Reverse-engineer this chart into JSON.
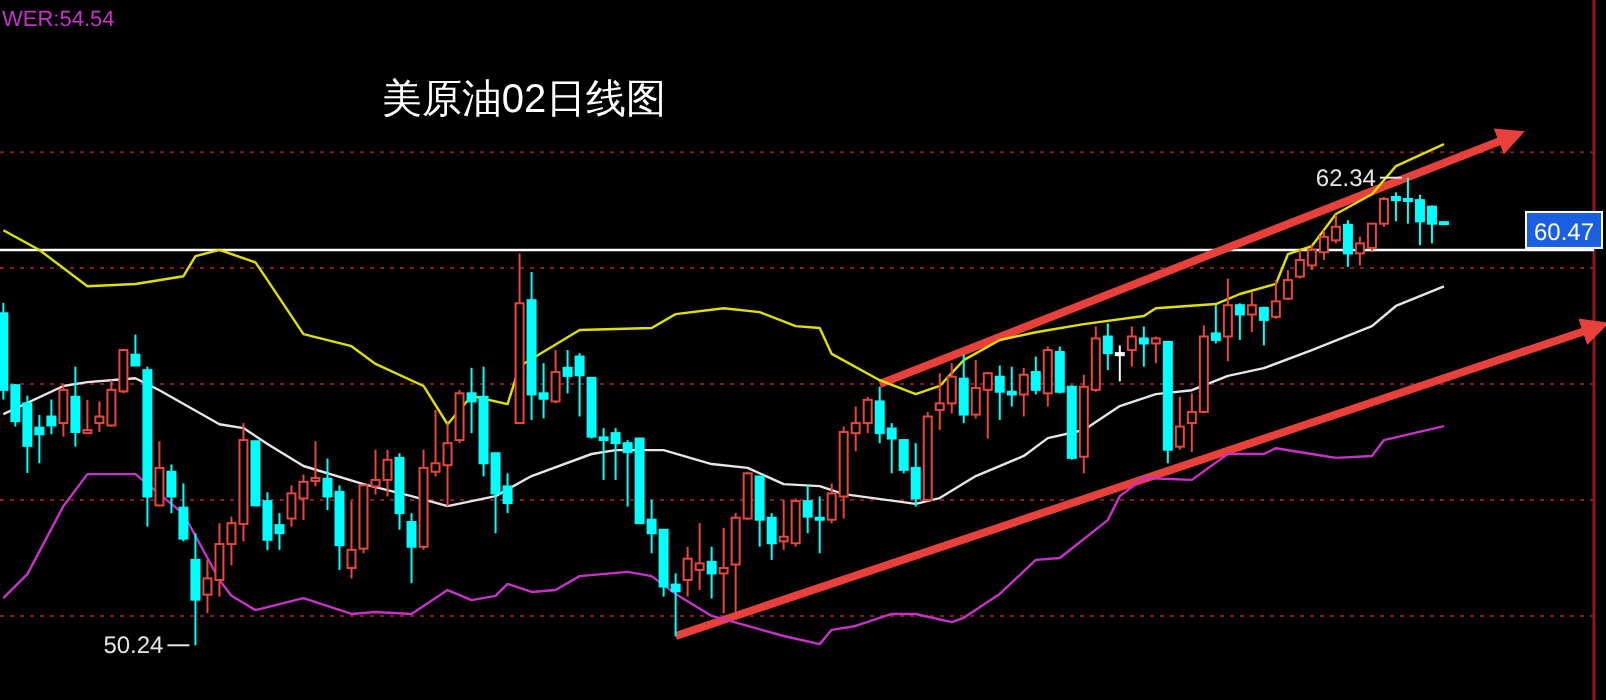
{
  "chart_data": {
    "type": "candlestick",
    "title": "美原油02日线图",
    "categories": [
      null,
      null,
      null,
      null,
      null,
      null,
      null,
      null,
      null,
      null,
      null,
      null,
      null,
      null,
      null,
      null,
      null,
      null,
      null,
      null,
      null,
      null,
      null,
      null,
      null,
      null,
      null,
      null,
      null,
      null,
      null,
      null,
      null,
      null,
      null,
      null,
      null,
      null,
      null,
      null,
      null,
      null,
      null,
      null,
      null,
      null,
      null,
      null,
      null,
      null,
      null,
      null,
      null,
      null,
      null,
      null,
      null,
      null,
      null,
      null,
      null,
      null,
      null,
      null,
      null,
      null,
      null,
      null,
      null,
      null,
      null,
      null,
      null,
      null,
      null,
      null,
      null,
      null,
      null,
      null,
      null,
      null,
      null,
      null,
      null,
      null,
      null,
      null,
      null,
      null,
      null,
      null,
      null,
      null,
      null,
      null,
      null,
      null,
      null,
      null,
      null,
      null,
      null,
      null,
      null,
      null,
      null,
      null,
      null,
      null,
      null,
      null,
      null,
      null,
      null,
      null,
      null,
      null,
      null,
      null,
      null,
      null,
      null,
      null,
      null,
      null,
      null,
      null,
      null,
      null,
      null,
      null,
      null
    ],
    "ohlc": [
      [
        58.83,
        59.1,
        56.6,
        56.85
      ],
      [
        56.97,
        57.0,
        55.9,
        56.04
      ],
      [
        56.5,
        56.7,
        54.7,
        55.4
      ],
      [
        55.87,
        56.2,
        54.95,
        55.7
      ],
      [
        56.16,
        56.6,
        55.7,
        55.93
      ],
      [
        55.99,
        57.0,
        55.64,
        56.85
      ],
      [
        56.67,
        57.45,
        55.38,
        55.76
      ],
      [
        55.73,
        56.59,
        55.73,
        55.81
      ],
      [
        55.99,
        56.55,
        55.76,
        56.16
      ],
      [
        55.93,
        57.1,
        55.9,
        56.85
      ],
      [
        56.81,
        57.88,
        56.76,
        57.88
      ],
      [
        57.76,
        58.28,
        57.48,
        57.48
      ],
      [
        57.36,
        57.45,
        53.31,
        54.09
      ],
      [
        53.86,
        55.52,
        53.86,
        54.83
      ],
      [
        54.73,
        54.92,
        53.66,
        54.09
      ],
      [
        53.8,
        54.43,
        52.93,
        53.0
      ],
      [
        52.45,
        53.14,
        50.24,
        51.42
      ],
      [
        51.55,
        52.45,
        51.07,
        51.97
      ],
      [
        51.93,
        53.4,
        51.5,
        52.86
      ],
      [
        52.86,
        53.57,
        52.31,
        53.4
      ],
      [
        53.38,
        55.99,
        52.93,
        55.55
      ],
      [
        55.52,
        55.52,
        53.86,
        53.86
      ],
      [
        53.97,
        54.2,
        52.7,
        52.97
      ],
      [
        53.35,
        53.66,
        52.71,
        53.14
      ],
      [
        53.52,
        54.38,
        53.31,
        54.17
      ],
      [
        54.04,
        54.66,
        53.48,
        54.47
      ],
      [
        54.49,
        55.52,
        54.35,
        54.57
      ],
      [
        54.55,
        55.07,
        53.74,
        54.09
      ],
      [
        54.21,
        54.38,
        52.19,
        52.83
      ],
      [
        52.24,
        53.97,
        51.97,
        52.71
      ],
      [
        52.74,
        54.38,
        52.62,
        54.38
      ],
      [
        54.35,
        55.3,
        54.14,
        54.52
      ],
      [
        54.52,
        55.3,
        54.09,
        55.04
      ],
      [
        55.09,
        55.21,
        53.23,
        53.66
      ],
      [
        53.43,
        53.66,
        51.85,
        52.79
      ],
      [
        52.79,
        55.3,
        52.71,
        54.83
      ],
      [
        54.73,
        56.33,
        54.61,
        54.95
      ],
      [
        54.9,
        55.99,
        53.83,
        55.47
      ],
      [
        55.55,
        56.85,
        55.47,
        56.76
      ],
      [
        56.76,
        57.42,
        55.73,
        56.55
      ],
      [
        56.67,
        57.45,
        54.61,
        54.95
      ],
      [
        55.21,
        55.21,
        53.14,
        54.17
      ],
      [
        54.35,
        54.69,
        53.66,
        53.92
      ],
      [
        55.99,
        60.38,
        55.99,
        59.09
      ],
      [
        59.17,
        59.9,
        56.07,
        56.73
      ],
      [
        56.76,
        57.54,
        56.11,
        56.62
      ],
      [
        56.55,
        57.88,
        56.5,
        57.31
      ],
      [
        57.42,
        57.88,
        56.76,
        57.21
      ],
      [
        57.71,
        57.8,
        56.16,
        57.23
      ],
      [
        57.16,
        57.16,
        55.59,
        55.64
      ],
      [
        55.62,
        55.86,
        54.52,
        55.55
      ],
      [
        55.73,
        55.86,
        54.52,
        55.47
      ],
      [
        55.47,
        55.55,
        53.83,
        55.24
      ],
      [
        55.59,
        55.59,
        53.4,
        53.4
      ],
      [
        53.49,
        54.0,
        52.62,
        53.14
      ],
      [
        53.23,
        53.23,
        51.5,
        51.76
      ],
      [
        51.81,
        52.1,
        50.47,
        51.64
      ],
      [
        51.93,
        52.79,
        51.5,
        52.48
      ],
      [
        52.19,
        53.4,
        51.67,
        52.36
      ],
      [
        52.4,
        52.79,
        51.45,
        52.1
      ],
      [
        52.1,
        53.28,
        51.07,
        52.24
      ],
      [
        52.33,
        53.66,
        51.07,
        53.54
      ],
      [
        53.52,
        54.73,
        53.49,
        54.69
      ],
      [
        54.61,
        54.61,
        52.79,
        53.49
      ],
      [
        53.54,
        53.66,
        52.45,
        52.88
      ],
      [
        52.93,
        54.0,
        52.71,
        53.05
      ],
      [
        52.88,
        54.04,
        52.79,
        53.97
      ],
      [
        53.97,
        54.38,
        53.14,
        53.57
      ],
      [
        53.54,
        54.09,
        52.62,
        53.5
      ],
      [
        53.49,
        54.43,
        53.4,
        54.17
      ],
      [
        54.09,
        55.9,
        53.52,
        55.76
      ],
      [
        55.73,
        56.42,
        55.26,
        55.99
      ],
      [
        55.99,
        56.67,
        55.73,
        56.59
      ],
      [
        56.55,
        56.93,
        55.47,
        55.73
      ],
      [
        55.85,
        55.99,
        54.69,
        55.59
      ],
      [
        55.55,
        55.55,
        54.69,
        54.78
      ],
      [
        54.83,
        55.47,
        53.83,
        54.04
      ],
      [
        54.0,
        56.28,
        53.97,
        56.16
      ],
      [
        56.33,
        57.28,
        55.81,
        56.5
      ],
      [
        56.5,
        57.54,
        56.24,
        57.19
      ],
      [
        57.14,
        57.76,
        55.99,
        56.21
      ],
      [
        56.21,
        57.62,
        56.11,
        56.9
      ],
      [
        56.85,
        57.31,
        55.59,
        57.28
      ],
      [
        57.19,
        57.48,
        56.07,
        56.8
      ],
      [
        56.8,
        57.45,
        56.42,
        56.73
      ],
      [
        56.73,
        57.42,
        56.16,
        57.24
      ],
      [
        57.31,
        57.71,
        56.73,
        56.85
      ],
      [
        56.76,
        57.97,
        56.42,
        57.88
      ],
      [
        57.83,
        57.97,
        56.76,
        56.8
      ],
      [
        56.93,
        56.97,
        55.04,
        55.09
      ],
      [
        55.12,
        57.24,
        54.69,
        56.93
      ],
      [
        56.85,
        58.49,
        56.8,
        58.18
      ],
      [
        58.23,
        58.57,
        57.36,
        57.8
      ],
      [
        57.8,
        58.0,
        57.07,
        57.8
      ],
      [
        57.88,
        58.49,
        57.45,
        58.23
      ],
      [
        58.18,
        58.49,
        57.45,
        58.05
      ],
      [
        58.05,
        58.23,
        57.54,
        58.18
      ],
      [
        58.09,
        58.09,
        54.95,
        55.3
      ],
      [
        55.38,
        56.67,
        55.3,
        55.9
      ],
      [
        55.99,
        56.76,
        55.24,
        56.28
      ],
      [
        56.28,
        58.52,
        56.24,
        58.23
      ],
      [
        58.31,
        59.04,
        58.05,
        58.14
      ],
      [
        58.23,
        59.73,
        57.59,
        59.04
      ],
      [
        59.04,
        59.09,
        58.14,
        58.8
      ],
      [
        58.8,
        59.38,
        58.35,
        59.04
      ],
      [
        58.97,
        59.0,
        58.0,
        58.66
      ],
      [
        58.74,
        59.69,
        58.69,
        59.14
      ],
      [
        59.21,
        59.95,
        59.17,
        59.69
      ],
      [
        59.78,
        60.47,
        59.73,
        60.21
      ],
      [
        60.07,
        60.59,
        59.95,
        60.47
      ],
      [
        60.41,
        60.98,
        60.21,
        60.81
      ],
      [
        60.72,
        61.38,
        60.64,
        61.07
      ],
      [
        61.12,
        61.24,
        60.03,
        60.38
      ],
      [
        60.38,
        60.81,
        60.07,
        60.64
      ],
      [
        60.52,
        61.15,
        60.41,
        61.15
      ],
      [
        61.15,
        61.84,
        61.07,
        61.79
      ],
      [
        61.84,
        61.96,
        61.21,
        61.76
      ],
      [
        61.79,
        62.34,
        61.15,
        61.76
      ],
      [
        61.76,
        61.9,
        60.59,
        61.21
      ],
      [
        61.59,
        61.62,
        60.64,
        61.15
      ],
      [
        61.19,
        61.21,
        61.12,
        61.14
      ],
      null,
      null,
      null,
      null,
      null,
      null,
      null,
      null,
      null,
      null,
      null,
      null
    ],
    "colors": [
      "#00ffff",
      "#00ffff",
      "#00ffff",
      "#00ffff",
      "#00ffff",
      "#e8473c",
      "#00ffff",
      "#e8473c",
      "#e8473c",
      "#e8473c",
      "#e8473c",
      "#00ffff",
      "#00ffff",
      "#e8473c",
      "#00ffff",
      "#00ffff",
      "#00ffff",
      "#e8473c",
      "#e8473c",
      "#e8473c",
      "#e8473c",
      "#00ffff",
      "#00ffff",
      "#00ffff",
      "#e8473c",
      "#e8473c",
      "#e8473c",
      "#00ffff",
      "#00ffff",
      "#e8473c",
      "#e8473c",
      "#e8473c",
      "#e8473c",
      "#00ffff",
      "#00ffff",
      "#e8473c",
      "#e8473c",
      "#e8473c",
      "#e8473c",
      "#00ffff",
      "#00ffff",
      "#00ffff",
      "#00ffff",
      "#e8473c",
      "#00ffff",
      "#00ffff",
      "#e8473c",
      "#00ffff",
      "#00ffff",
      "#00ffff",
      "#00ffff",
      "#00ffff",
      "#00ffff",
      "#00ffff",
      "#00ffff",
      "#00ffff",
      "#00ffff",
      "#e8473c",
      "#e8473c",
      "#00ffff",
      "#e8473c",
      "#e8473c",
      "#e8473c",
      "#00ffff",
      "#00ffff",
      "#e8473c",
      "#e8473c",
      "#00ffff",
      "#00ffff",
      "#e8473c",
      "#e8473c",
      "#e8473c",
      "#e8473c",
      "#00ffff",
      "#00ffff",
      "#00ffff",
      "#00ffff",
      "#e8473c",
      "#e8473c",
      "#e8473c",
      "#00ffff",
      "#e8473c",
      "#e8473c",
      "#00ffff",
      "#00ffff",
      "#e8473c",
      "#00ffff",
      "#e8473c",
      "#00ffff",
      "#00ffff",
      "#e8473c",
      "#e8473c",
      "#00ffff",
      "#ffffff",
      "#e8473c",
      "#00ffff",
      "#e8473c",
      "#00ffff",
      "#e8473c",
      "#e8473c",
      "#e8473c",
      "#00ffff",
      "#e8473c",
      "#00ffff",
      "#e8473c",
      "#00ffff",
      "#e8473c",
      "#e8473c",
      "#e8473c",
      "#e8473c",
      "#e8473c",
      "#e8473c",
      "#00ffff",
      "#e8473c",
      "#e8473c",
      "#e8473c",
      "#00ffff",
      "#00ffff",
      "#00ffff",
      "#00ffff",
      "#00ffff",
      null,
      null,
      null,
      null,
      null,
      null,
      null,
      null,
      null,
      null,
      null,
      null
    ],
    "series": [
      {
        "type": "line",
        "color": "#e0e000",
        "values": [
          60.98,
          null,
          null,
          60.47,
          null,
          null,
          null,
          59.53,
          null,
          null,
          null,
          59.59,
          null,
          null,
          null,
          59.79,
          60.31,
          null,
          60.47,
          null,
          null,
          60.15,
          59.69,
          null,
          null,
          58.29,
          null,
          null,
          null,
          57.98,
          null,
          57.52,
          null,
          null,
          null,
          56.95,
          null,
          55.96,
          null,
          56.69,
          null,
          null,
          56.48,
          57.46,
          null,
          null,
          null,
          null,
          58.4,
          null,
          null,
          null,
          null,
          null,
          58.45,
          null,
          58.81,
          null,
          null,
          null,
          58.96,
          null,
          null,
          58.86,
          null,
          null,
          58.5,
          null,
          58.45,
          57.78,
          null,
          null,
          null,
          57.1,
          null,
          null,
          56.74,
          null,
          56.95,
          null,
          57.62,
          null,
          null,
          58.14,
          null,
          null,
          58.34,
          null,
          null,
          null,
          58.55,
          null,
          null,
          null,
          null,
          58.76,
          58.96,
          null,
          null,
          null,
          null,
          59.07,
          null,
          59.33,
          null,
          null,
          59.59,
          60.36,
          null,
          60.57,
          null,
          61.4,
          null,
          null,
          61.91,
          null,
          62.64,
          null,
          null,
          null,
          63.21,
          null,
          null,
          null,
          null,
          null,
          null,
          null,
          null,
          null,
          null,
          null,
          null
        ]
      },
      {
        "type": "line",
        "color": "#e6e6e6",
        "values": [
          56.22,
          null,
          null,
          null,
          null,
          56.95,
          null,
          57.05,
          null,
          null,
          null,
          57.15,
          null,
          56.84,
          null,
          null,
          null,
          null,
          55.96,
          null,
          55.86,
          null,
          55.45,
          null,
          null,
          54.88,
          null,
          null,
          null,
          null,
          54.41,
          null,
          null,
          null,
          54.1,
          null,
          null,
          53.84,
          null,
          null,
          null,
          54.1,
          null,
          null,
          54.62,
          null,
          null,
          null,
          null,
          55.19,
          null,
          55.29,
          null,
          null,
          null,
          55.29,
          null,
          null,
          null,
          54.93,
          null,
          null,
          54.83,
          null,
          null,
          54.41,
          null,
          null,
          54.36,
          null,
          54.15,
          null,
          null,
          null,
          null,
          null,
          53.9,
          null,
          54.05,
          null,
          null,
          54.62,
          null,
          null,
          null,
          55.14,
          null,
          55.6,
          null,
          null,
          55.81,
          null,
          null,
          56.43,
          null,
          null,
          56.74,
          null,
          null,
          56.84,
          null,
          null,
          57.21,
          null,
          null,
          57.41,
          null,
          null,
          null,
          57.88,
          null,
          null,
          null,
          null,
          58.5,
          null,
          59.02,
          null,
          null,
          null,
          59.53,
          null,
          null,
          null,
          null,
          null,
          null,
          null,
          null,
          null,
          null,
          null,
          null
        ]
      },
      {
        "type": "line",
        "color": "#c832c8",
        "values": [
          51.46,
          null,
          52.08,
          null,
          null,
          53.84,
          null,
          54.67,
          null,
          null,
          null,
          54.67,
          54.41,
          null,
          null,
          53.64,
          null,
          null,
          51.93,
          51.52,
          null,
          51.15,
          null,
          null,
          null,
          51.46,
          null,
          null,
          null,
          51.05,
          null,
          51.1,
          null,
          null,
          51.05,
          null,
          null,
          51.67,
          null,
          51.41,
          null,
          51.52,
          51.83,
          null,
          51.62,
          null,
          51.67,
          null,
          52.03,
          null,
          null,
          null,
          52.14,
          null,
          52.03,
          null,
          51.57,
          null,
          null,
          51.0,
          null,
          null,
          50.74,
          null,
          null,
          50.48,
          null,
          null,
          50.27,
          50.64,
          null,
          50.74,
          null,
          null,
          51.05,
          null,
          51.05,
          null,
          null,
          50.84,
          50.95,
          null,
          null,
          51.57,
          null,
          null,
          52.45,
          null,
          52.5,
          null,
          null,
          null,
          53.48,
          54.1,
          null,
          54.57,
          null,
          null,
          null,
          54.52,
          null,
          null,
          55.19,
          null,
          null,
          55.19,
          55.34,
          null,
          null,
          55.19,
          null,
          55.09,
          null,
          null,
          55.14,
          55.55,
          null,
          null,
          null,
          null,
          55.91,
          null,
          null,
          null,
          null,
          null,
          null,
          null,
          null,
          null,
          null,
          null,
          null
        ]
      },
      {
        "type": "line",
        "color": "#e8403a",
        "values": [
          null,
          null,
          null,
          null,
          null,
          null,
          null,
          null,
          null,
          null,
          null,
          null,
          null,
          null,
          null,
          null,
          null,
          null,
          null,
          null,
          null,
          null,
          null,
          null,
          null,
          null,
          null,
          null,
          null,
          null,
          null,
          null,
          null,
          null,
          null,
          null,
          null,
          null,
          null,
          null,
          null,
          null,
          null,
          null,
          null,
          null,
          null,
          null,
          null,
          null,
          null,
          null,
          null,
          null,
          null,
          null,
          null,
          null,
          null,
          null,
          null,
          null,
          null,
          null,
          null,
          null,
          null,
          null,
          null,
          null,
          null,
          null,
          null,
          57.0,
          null,
          null,
          null,
          null,
          null,
          null,
          null,
          null,
          null,
          null,
          null,
          null,
          null,
          null,
          null,
          null,
          null,
          null,
          null,
          null,
          null,
          null,
          null,
          null,
          null,
          null,
          null,
          null,
          null,
          null,
          null,
          null,
          null,
          null,
          null,
          null,
          null,
          null,
          null,
          null,
          null,
          null,
          null,
          null,
          null,
          null,
          null,
          null,
          null,
          null,
          null,
          63.33,
          null,
          null,
          null,
          null,
          null,
          null,
          null
        ]
      },
      {
        "type": "line",
        "color": "#e8403a",
        "values": [
          null,
          null,
          null,
          null,
          null,
          null,
          null,
          null,
          null,
          null,
          null,
          null,
          null,
          null,
          null,
          null,
          null,
          null,
          null,
          null,
          null,
          null,
          null,
          null,
          null,
          null,
          null,
          null,
          null,
          null,
          null,
          null,
          null,
          null,
          null,
          null,
          null,
          null,
          null,
          null,
          null,
          null,
          null,
          null,
          null,
          null,
          null,
          null,
          null,
          null,
          null,
          null,
          null,
          null,
          null,
          null,
          50.48,
          null,
          null,
          null,
          null,
          null,
          null,
          null,
          null,
          null,
          null,
          null,
          null,
          null,
          null,
          null,
          null,
          null,
          null,
          null,
          null,
          null,
          null,
          null,
          null,
          null,
          null,
          null,
          null,
          null,
          null,
          null,
          null,
          null,
          null,
          null,
          null,
          null,
          null,
          null,
          null,
          null,
          null,
          null,
          null,
          null,
          null,
          null,
          null,
          null,
          null,
          null,
          null,
          null,
          null,
          null,
          null,
          null,
          null,
          null,
          null,
          null,
          null,
          null,
          null,
          null,
          null,
          null,
          null,
          null,
          null,
          null,
          null,
          null,
          null,
          null,
          58.4
        ]
      }
    ],
    "ref_lines": [
      {
        "axis": "y",
        "value": 60.47,
        "label": "60.47",
        "color": "#ffffff"
      }
    ],
    "annotations": [
      "62.34",
      "50.24",
      "WER:54.54"
    ],
    "yticks": [
      {
        "value": 51,
        "label": null
      },
      {
        "value": 54,
        "label": null
      },
      {
        "value": 57,
        "label": null
      },
      {
        "value": 60,
        "label": null
      },
      {
        "value": 63,
        "label": null
      }
    ],
    "grid": "y"
  }
}
